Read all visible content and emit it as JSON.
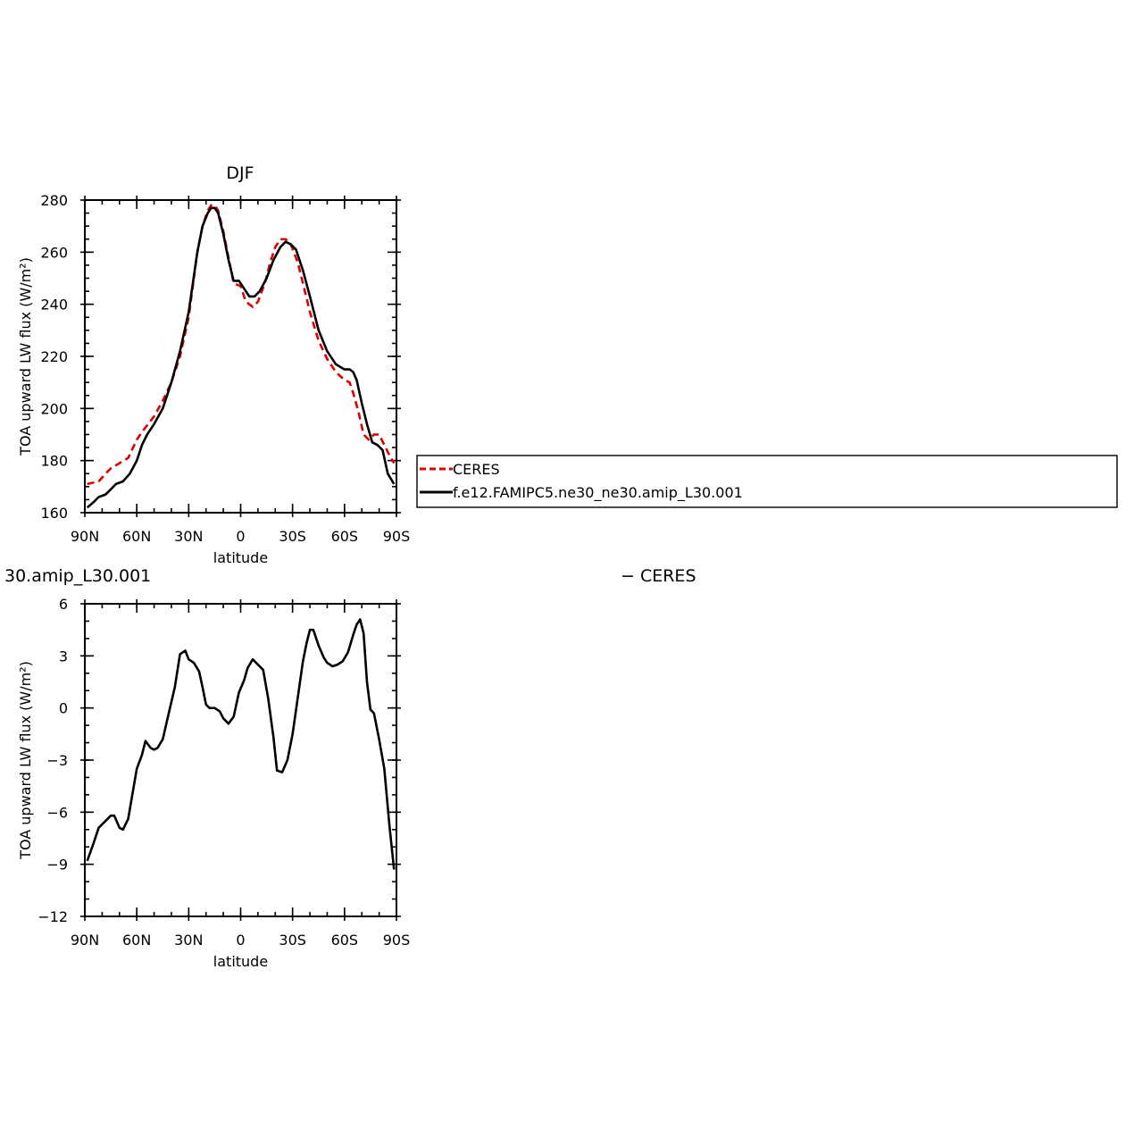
{
  "legend": {
    "items": [
      {
        "label": "CERES",
        "color": "#dd0000",
        "dash": true
      },
      {
        "label": "f.e12.FAMIPC5.ne30_ne30.amip_L30.001",
        "color": "#000000",
        "dash": false
      }
    ]
  },
  "chart_data": [
    {
      "type": "line",
      "title": "DJF",
      "xlabel": "latitude",
      "ylabel": "TOA upward LW flux (W/m²)",
      "xlim": [
        -90,
        90
      ],
      "ylim": [
        160,
        280
      ],
      "x_ticks": [
        {
          "value": -90,
          "label": "90N"
        },
        {
          "value": -60,
          "label": "60N"
        },
        {
          "value": -30,
          "label": "30N"
        },
        {
          "value": 0,
          "label": "0"
        },
        {
          "value": 30,
          "label": "30S"
        },
        {
          "value": 60,
          "label": "60S"
        },
        {
          "value": 90,
          "label": "90S"
        }
      ],
      "y_ticks": [
        160,
        180,
        200,
        220,
        240,
        260,
        280
      ],
      "series": [
        {
          "name": "CERES",
          "color": "#dd0000",
          "dash": true,
          "x": [
            -88.6,
            -82,
            -78,
            -75,
            -70,
            -65,
            -60,
            -57,
            -50,
            -45,
            -40,
            -35,
            -30,
            -25,
            -22,
            -19,
            -17,
            -15,
            -13,
            -10,
            -7,
            -4,
            0,
            3,
            7,
            10,
            14,
            17,
            20,
            23,
            26,
            29,
            33,
            36,
            40,
            45,
            50,
            55,
            60,
            63,
            65,
            68,
            71,
            74,
            77,
            80,
            83,
            86,
            88.6
          ],
          "y": [
            171,
            172,
            175,
            177,
            179,
            181,
            188,
            191,
            197,
            203,
            210,
            220,
            235,
            260,
            270,
            276,
            278,
            278,
            276,
            268,
            258,
            248,
            247,
            241,
            239,
            241,
            248,
            256,
            262,
            265,
            265,
            263,
            256,
            248,
            237,
            226,
            219,
            214,
            211,
            210,
            206,
            199,
            190,
            188,
            190,
            190,
            186,
            182,
            179
          ]
        },
        {
          "name": "f.e12.FAMIPC5.ne30_ne30.amip_L30.001",
          "color": "#000000",
          "dash": false,
          "x": [
            -88.6,
            -85,
            -82,
            -78,
            -75,
            -72,
            -68,
            -64,
            -60,
            -57,
            -54,
            -50,
            -45,
            -40,
            -35,
            -30,
            -25,
            -22,
            -19,
            -17,
            -15,
            -13,
            -10,
            -7,
            -4,
            -1,
            2,
            5,
            8,
            11,
            15,
            19,
            23,
            26,
            29,
            32,
            36,
            40,
            45,
            50,
            55,
            60,
            63,
            65,
            67,
            70,
            73,
            76,
            79,
            82,
            85,
            88.6
          ],
          "y": [
            162,
            164,
            166,
            167,
            169,
            171,
            172,
            175,
            180,
            186,
            190,
            194,
            200,
            210,
            222,
            237,
            260,
            270,
            275,
            277,
            277,
            275,
            267,
            257,
            249,
            249,
            246,
            243,
            243,
            245,
            250,
            257,
            262,
            264,
            263,
            261,
            253,
            243,
            230,
            222,
            217,
            215,
            215,
            214,
            211,
            202,
            194,
            187,
            186,
            184,
            175,
            171
          ]
        }
      ]
    },
    {
      "type": "line",
      "title": "30.amip_L30.001",
      "title_right": "− CERES",
      "xlabel": "latitude",
      "ylabel": "TOA upward LW flux (W/m²)",
      "xlim": [
        -90,
        90
      ],
      "ylim": [
        -12,
        6
      ],
      "x_ticks": [
        {
          "value": -90,
          "label": "90N"
        },
        {
          "value": -60,
          "label": "60N"
        },
        {
          "value": -30,
          "label": "30N"
        },
        {
          "value": 0,
          "label": "0"
        },
        {
          "value": 30,
          "label": "30S"
        },
        {
          "value": 60,
          "label": "60S"
        },
        {
          "value": 90,
          "label": "90S"
        }
      ],
      "y_ticks": [
        -12,
        -9,
        -6,
        -3,
        0,
        3,
        6
      ],
      "series": [
        {
          "name": "f.e12.FAMIPC5.ne30_ne30.amip_L30.001",
          "color": "#000000",
          "dash": false,
          "x": [
            -88.6,
            -85,
            -82,
            -78,
            -75,
            -73,
            -70,
            -68,
            -65,
            -60,
            -57,
            -55,
            -52,
            -50,
            -48,
            -45,
            -42,
            -38,
            -35,
            -32,
            -30,
            -27,
            -24,
            -22,
            -20,
            -18,
            -15,
            -12,
            -10,
            -7,
            -4,
            -1,
            2,
            4,
            7,
            10,
            13,
            16,
            19,
            21,
            24,
            27,
            30,
            33,
            36,
            38,
            40,
            42,
            45,
            48,
            50,
            53,
            56,
            59,
            62,
            65,
            67,
            69,
            71,
            73,
            75,
            77,
            80,
            83,
            86,
            88.6
          ],
          "y": [
            -8.8,
            -7.8,
            -6.9,
            -6.5,
            -6.2,
            -6.2,
            -6.9,
            -7.0,
            -6.4,
            -3.5,
            -2.7,
            -1.9,
            -2.3,
            -2.4,
            -2.3,
            -1.8,
            -0.5,
            1.2,
            3.1,
            3.3,
            2.8,
            2.6,
            2.1,
            1.2,
            0.2,
            0.0,
            0.0,
            -0.2,
            -0.6,
            -0.9,
            -0.5,
            0.9,
            1.6,
            2.3,
            2.8,
            2.5,
            2.2,
            0.5,
            -1.7,
            -3.6,
            -3.7,
            -3.0,
            -1.5,
            0.6,
            2.7,
            3.7,
            4.5,
            4.5,
            3.6,
            2.9,
            2.6,
            2.4,
            2.5,
            2.7,
            3.2,
            4.2,
            4.8,
            5.1,
            4.3,
            1.5,
            -0.1,
            -0.3,
            -1.8,
            -3.5,
            -6.8,
            -9.3
          ]
        }
      ]
    }
  ]
}
